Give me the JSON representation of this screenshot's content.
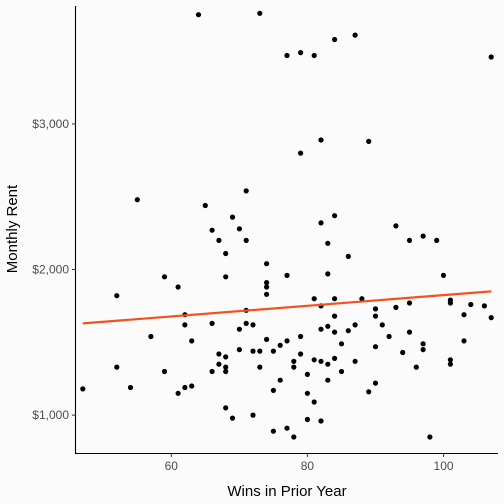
{
  "chart_data": {
    "type": "scatter",
    "title": "",
    "xlabel": "Wins in Prior Year",
    "ylabel": "Monthly Rent",
    "xlim": [
      46,
      108
    ],
    "ylim": [
      740,
      3810
    ],
    "x_ticks": [
      60,
      80,
      100
    ],
    "x_tick_labels": [
      "60",
      "80",
      "100"
    ],
    "y_ticks": [
      1000,
      2000,
      3000
    ],
    "y_tick_labels": [
      "$1,000",
      "$2,000",
      "$3,000"
    ],
    "grid": false,
    "legend": "none",
    "point_color": "#000000",
    "points": [
      [
        47,
        1180
      ],
      [
        52,
        1820
      ],
      [
        52,
        1330
      ],
      [
        54,
        1190
      ],
      [
        55,
        2480
      ],
      [
        57,
        1540
      ],
      [
        59,
        1950
      ],
      [
        59,
        1300
      ],
      [
        61,
        1880
      ],
      [
        61,
        1150
      ],
      [
        62,
        1690
      ],
      [
        62,
        1620
      ],
      [
        62,
        1190
      ],
      [
        63,
        1510
      ],
      [
        63,
        1200
      ],
      [
        64,
        3750
      ],
      [
        65,
        2440
      ],
      [
        66,
        2270
      ],
      [
        66,
        1630
      ],
      [
        66,
        1300
      ],
      [
        67,
        2200
      ],
      [
        67,
        1420
      ],
      [
        67,
        1350
      ],
      [
        68,
        2110
      ],
      [
        68,
        1950
      ],
      [
        68,
        1400
      ],
      [
        68,
        1330
      ],
      [
        68,
        1300
      ],
      [
        68,
        1050
      ],
      [
        69,
        2360
      ],
      [
        69,
        980
      ],
      [
        70,
        2280
      ],
      [
        70,
        1590
      ],
      [
        70,
        1450
      ],
      [
        71,
        2540
      ],
      [
        71,
        2200
      ],
      [
        71,
        1720
      ],
      [
        71,
        1630
      ],
      [
        72,
        1620
      ],
      [
        72,
        1440
      ],
      [
        72,
        1000
      ],
      [
        73,
        3760
      ],
      [
        73,
        1330
      ],
      [
        73,
        1440
      ],
      [
        74,
        2040
      ],
      [
        74,
        1910
      ],
      [
        74,
        1880
      ],
      [
        74,
        1830
      ],
      [
        74,
        1520
      ],
      [
        75,
        1440
      ],
      [
        75,
        1170
      ],
      [
        75,
        890
      ],
      [
        76,
        1480
      ],
      [
        76,
        1240
      ],
      [
        77,
        3470
      ],
      [
        77,
        1960
      ],
      [
        77,
        1510
      ],
      [
        77,
        910
      ],
      [
        78,
        1370
      ],
      [
        78,
        1330
      ],
      [
        78,
        850
      ],
      [
        79,
        3490
      ],
      [
        79,
        2800
      ],
      [
        79,
        1540
      ],
      [
        79,
        1420
      ],
      [
        80,
        1280
      ],
      [
        80,
        1150
      ],
      [
        80,
        970
      ],
      [
        81,
        3470
      ],
      [
        81,
        1800
      ],
      [
        81,
        1380
      ],
      [
        81,
        1090
      ],
      [
        82,
        2890
      ],
      [
        82,
        2320
      ],
      [
        82,
        1750
      ],
      [
        82,
        1590
      ],
      [
        82,
        1370
      ],
      [
        82,
        960
      ],
      [
        83,
        2180
      ],
      [
        83,
        1970
      ],
      [
        83,
        1610
      ],
      [
        83,
        1350
      ],
      [
        83,
        1240
      ],
      [
        84,
        3580
      ],
      [
        84,
        2370
      ],
      [
        84,
        1800
      ],
      [
        84,
        1680
      ],
      [
        84,
        1570
      ],
      [
        84,
        1390
      ],
      [
        85,
        1490
      ],
      [
        85,
        1300
      ],
      [
        86,
        2090
      ],
      [
        86,
        1580
      ],
      [
        87,
        3610
      ],
      [
        87,
        1620
      ],
      [
        87,
        1370
      ],
      [
        88,
        1800
      ],
      [
        89,
        2880
      ],
      [
        89,
        1160
      ],
      [
        90,
        1730
      ],
      [
        90,
        1680
      ],
      [
        90,
        1470
      ],
      [
        90,
        1220
      ],
      [
        91,
        1620
      ],
      [
        92,
        1540
      ],
      [
        93,
        2300
      ],
      [
        93,
        1740
      ],
      [
        94,
        1430
      ],
      [
        95,
        2200
      ],
      [
        95,
        1770
      ],
      [
        95,
        1570
      ],
      [
        96,
        1330
      ],
      [
        97,
        2230
      ],
      [
        97,
        1490
      ],
      [
        97,
        1450
      ],
      [
        98,
        850
      ],
      [
        99,
        2200
      ],
      [
        100,
        1960
      ],
      [
        101,
        1790
      ],
      [
        101,
        1770
      ],
      [
        101,
        1380
      ],
      [
        101,
        1350
      ],
      [
        103,
        1690
      ],
      [
        103,
        1510
      ],
      [
        104,
        1760
      ],
      [
        106,
        1750
      ],
      [
        107,
        3460
      ],
      [
        107,
        1670
      ]
    ],
    "trend_line": {
      "type": "linear",
      "color": "#f4511e",
      "start": [
        47,
        1630
      ],
      "end": [
        107,
        1850
      ]
    }
  }
}
